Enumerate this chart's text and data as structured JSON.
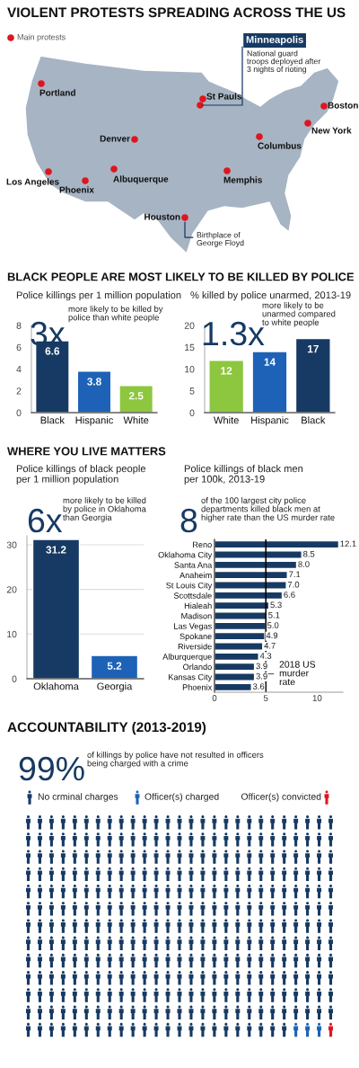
{
  "chart_data": [
    {
      "type": "other",
      "title": "VIOLENT PROTESTS SPREADING ACROSS THE US",
      "annotations": [
        "Main protests",
        "Minneapolis",
        "National guard\ntroops deployed after\n3 nights of rioting",
        "Portland",
        "St Pauls",
        "Boston",
        "New York",
        "Denver",
        "Columbus",
        "Los Angeles",
        "Phoenix",
        "Albuquerque",
        "Memphis",
        "Houston",
        "Birthplace of\nGeorge Floyd"
      ]
    },
    {
      "type": "bar",
      "title": "BLACK PEOPLE ARE MOST LIKELY TO BE KILLED BY POLICE",
      "subtitle": "Police killings per 1 million population",
      "annotations": [
        "3x",
        "more likely to be killed by\npolice than white people"
      ],
      "categories": [
        "Black",
        "Hispanic",
        "White"
      ],
      "values": [
        6.6,
        3.8,
        2.5
      ],
      "colors": [
        "#163a63",
        "#1d62b7",
        "#8dc63f"
      ],
      "ylim": [
        0,
        8
      ],
      "yticks": [
        0,
        2,
        4,
        6,
        8
      ],
      "data_labels": true
    },
    {
      "type": "bar",
      "subtitle": "% killed by police unarmed, 2013-19",
      "annotations": [
        "1.3x",
        "more likely to be\nunarmed compared\nto white people"
      ],
      "categories": [
        "White",
        "Hispanic",
        "Black"
      ],
      "values": [
        12,
        14,
        17
      ],
      "colors": [
        "#8dc63f",
        "#1d62b7",
        "#163a63"
      ],
      "ylim": [
        0,
        20
      ],
      "yticks": [
        0,
        5,
        10,
        15,
        20
      ],
      "data_labels": true
    },
    {
      "type": "bar",
      "title": "WHERE YOU LIVE MATTERS",
      "subtitle": "Police killings of black people\nper 1 million population",
      "annotations": [
        "6x",
        "more likely to be killed\nby police in Oklahoma\nthan Georgia"
      ],
      "categories": [
        "Oklahoma",
        "Georgia"
      ],
      "values": [
        31.2,
        5.2
      ],
      "colors": [
        "#163a63",
        "#1d62b7"
      ],
      "ylim": [
        0,
        32
      ],
      "yticks": [
        0,
        10,
        20,
        30
      ],
      "grid": "y",
      "data_labels": true
    },
    {
      "type": "bar",
      "orientation": "horizontal",
      "subtitle": "Police killings of black men\nper 100k, 2013-19",
      "annotations": [
        "8",
        "of the 100 largest city police\ndepartments killed black men at\nhigher rate than the US murder rate"
      ],
      "categories": [
        "Reno",
        "Oklahoma City",
        "Santa Ana",
        "Anaheim",
        "St Louis City",
        "Scottsdale",
        "Hialeah",
        "Madison",
        "Las Vegas",
        "Spokane",
        "Riverside",
        "Alburquerque",
        "Orlando",
        "Kansas City",
        "Phoenix"
      ],
      "values": [
        12.1,
        8.5,
        8.0,
        7.1,
        7.0,
        6.6,
        5.3,
        5.1,
        5.0,
        4.9,
        4.7,
        4.3,
        3.9,
        3.9,
        3.6
      ],
      "color": "#163a63",
      "xlim": [
        0,
        12.5
      ],
      "xticks": [
        0,
        5,
        10
      ],
      "ref_lines": [
        {
          "axis": "x",
          "value": 5,
          "label": "2018 US\nmurder\nrate",
          "color": "#000000"
        }
      ],
      "value_labels": [
        "12.1",
        "8.5",
        "8.0",
        "7.1",
        "7.0",
        "6.6",
        "5.3",
        "5.1",
        "5.0",
        "4.9",
        "4.7",
        "4.3",
        "3.9",
        "3.9",
        "3.6"
      ]
    },
    {
      "type": "other",
      "title": "ACCOUNTABILITY (2013-2019)",
      "annotations": [
        "99%",
        "of killings by police have not resulted in officers\nbeing charged with a crime",
        "No crminal charges",
        "Officer(s) charged",
        "Officer(s) convicted"
      ]
    }
  ]
}
